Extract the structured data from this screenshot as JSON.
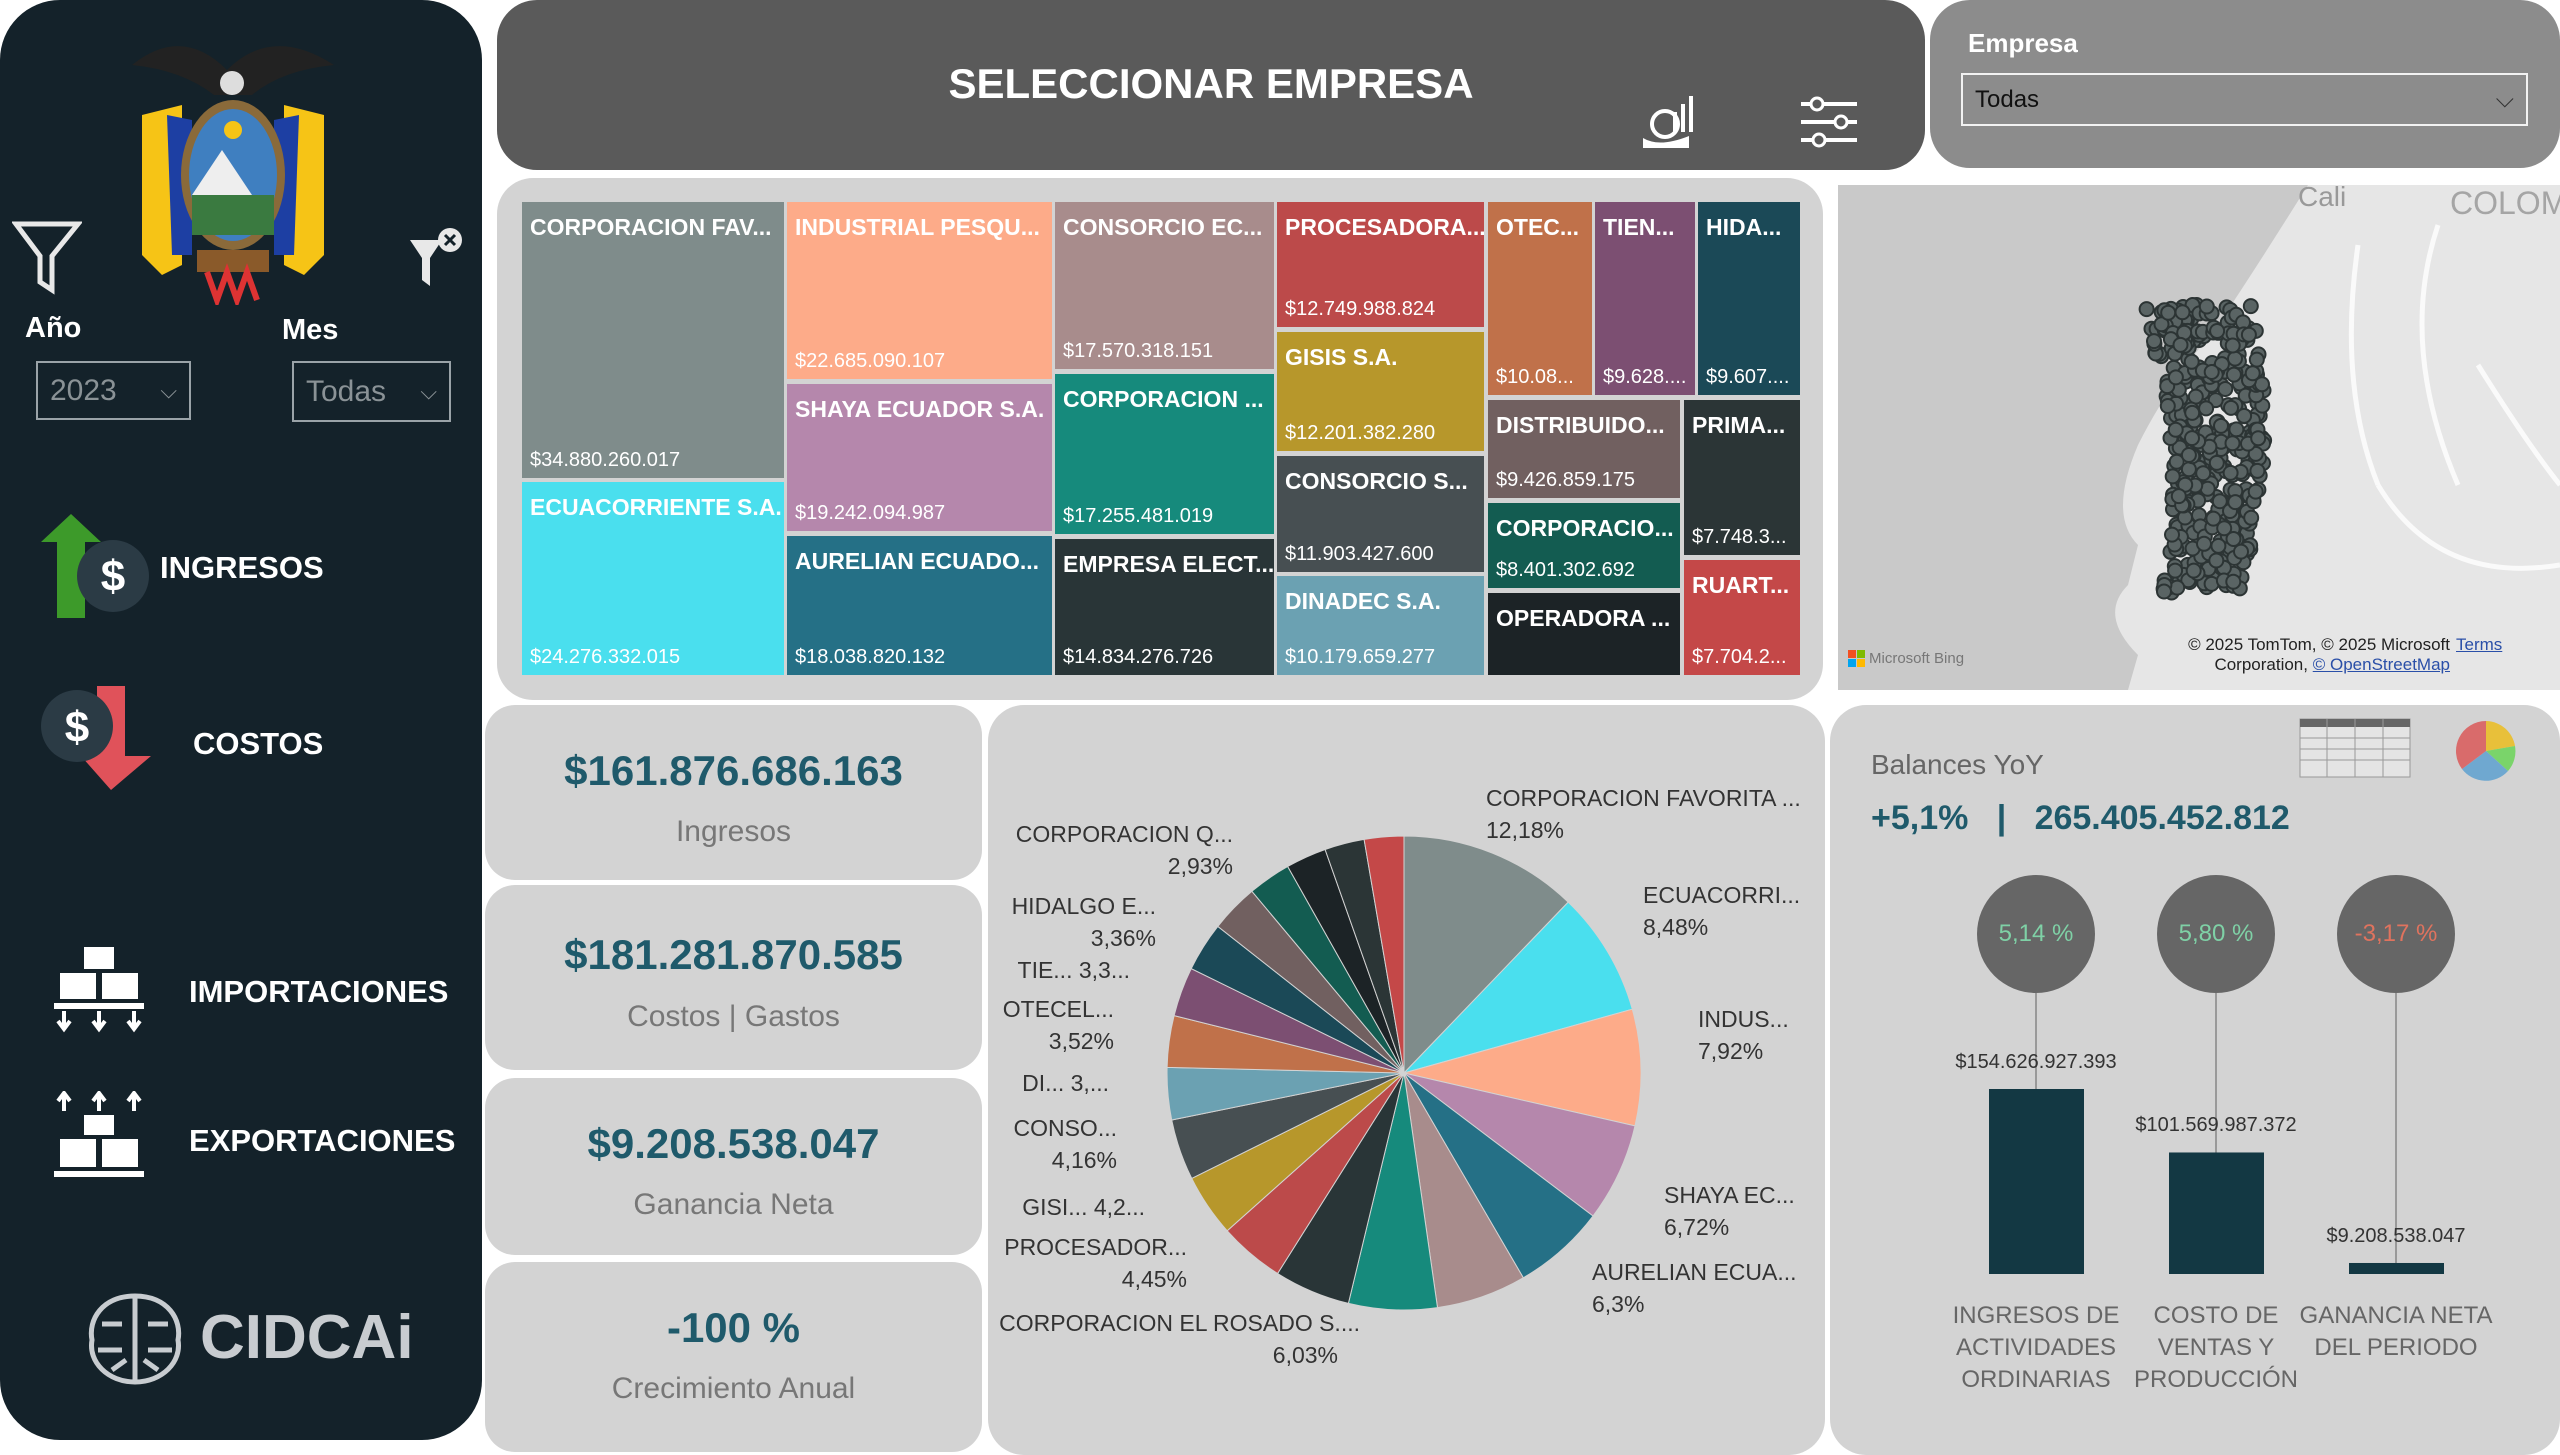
{
  "sidebar": {
    "year_label": "Año",
    "year_value": "2023",
    "month_label": "Mes",
    "month_value": "Todas",
    "nav": [
      {
        "label": "INGRESOS",
        "icon": "income-icon"
      },
      {
        "label": "COSTOS",
        "icon": "costs-icon"
      },
      {
        "label": "IMPORTACIONES",
        "icon": "imports-icon"
      },
      {
        "label": "EXPORTACIONES",
        "icon": "exports-icon"
      }
    ],
    "brand": "CIDCAi"
  },
  "header": {
    "title": "SELECCIONAR EMPRESA"
  },
  "empresa": {
    "label": "Empresa",
    "value": "Todas"
  },
  "treemap": [
    {
      "name": "CORPORACION FAV...",
      "value": "$34.880.260.017",
      "color": "#7f8c8b"
    },
    {
      "name": "ECUACORRIENTE S.A.",
      "value": "$24.276.332.015",
      "color": "#4adfee"
    },
    {
      "name": "INDUSTRIAL PESQU...",
      "value": "$22.685.090.107",
      "color": "#fdab89"
    },
    {
      "name": "SHAYA ECUADOR S.A.",
      "value": "$19.242.094.987",
      "color": "#b587ac"
    },
    {
      "name": "AURELIAN ECUADO...",
      "value": "$18.038.820.132",
      "color": "#257086"
    },
    {
      "name": "CONSORCIO EC...",
      "value": "$17.570.318.151",
      "color": "#a88c8c"
    },
    {
      "name": "CORPORACION ...",
      "value": "$17.255.481.019",
      "color": "#168a7c"
    },
    {
      "name": "EMPRESA ELECT...",
      "value": "$14.834.276.726",
      "color": "#293537"
    },
    {
      "name": "PROCESADORA...",
      "value": "$12.749.988.824",
      "color": "#bc4a4a"
    },
    {
      "name": "GISIS S.A.",
      "value": "$12.201.382.280",
      "color": "#b7972b"
    },
    {
      "name": "CONSORCIO S...",
      "value": "$11.903.427.600",
      "color": "#474f52"
    },
    {
      "name": "DINADEC S.A.",
      "value": "$10.179.659.277",
      "color": "#6ba1b2"
    },
    {
      "name": "OTEC...",
      "value": "$10.08...",
      "color": "#c0714a"
    },
    {
      "name": "TIEN...",
      "value": "$9.628....",
      "color": "#7c4f72"
    },
    {
      "name": "HIDA...",
      "value": "$9.607....",
      "color": "#1b4957"
    },
    {
      "name": "DISTRIBUIDO...",
      "value": "$9.426.859.175",
      "color": "#716060"
    },
    {
      "name": "CORPORACIO...",
      "value": "$8.401.302.692",
      "color": "#135c51"
    },
    {
      "name": "OPERADORA ...",
      "value": "",
      "color": "#1c2326"
    },
    {
      "name": "PRIMA...",
      "value": "$7.748.3...",
      "color": "#2b3536"
    },
    {
      "name": "RUART...",
      "value": "$7.704.2...",
      "color": "#c44848"
    }
  ],
  "map": {
    "labels": [
      "Cali",
      "COLOM"
    ],
    "attribution": "© 2025 TomTom, © 2025 Microsoft",
    "attribution2": "Corporation,",
    "osm": "© OpenStreetMap",
    "terms": "Terms",
    "bing": "Microsoft Bing"
  },
  "kpis": [
    {
      "value": "$161.876.686.163",
      "label": "Ingresos"
    },
    {
      "value": "$181.281.870.585",
      "label": "Costos | Gastos"
    },
    {
      "value": "$9.208.538.047",
      "label": "Ganancia Neta"
    },
    {
      "value": "-100 %",
      "label": "Crecimiento Anual"
    }
  ],
  "chart_data": [
    {
      "type": "pie",
      "slices": [
        {
          "name": "CORPORACION FAVORITA",
          "value": 12.18,
          "color": "#7f8c8b"
        },
        {
          "name": "ECUACORRIENTE",
          "value": 8.48,
          "color": "#4adfee"
        },
        {
          "name": "INDUSTRIAL PESQU",
          "value": 7.92,
          "color": "#fdab89"
        },
        {
          "name": "SHAYA ECUADOR",
          "value": 6.72,
          "color": "#b587ac"
        },
        {
          "name": "AURELIAN ECUADOR",
          "value": 6.3,
          "color": "#257086"
        },
        {
          "name": "CONSORCIO EC",
          "value": 6.13,
          "color": "#a88c8c"
        },
        {
          "name": "CORPORACION EL ROSADO",
          "value": 6.03,
          "color": "#168a7c"
        },
        {
          "name": "EMPRESA ELECT",
          "value": 5.18,
          "color": "#293537"
        },
        {
          "name": "PROCESADORA",
          "value": 4.45,
          "color": "#bc4a4a"
        },
        {
          "name": "GISIS",
          "value": 4.26,
          "color": "#b7972b"
        },
        {
          "name": "CONSORCIO S",
          "value": 4.16,
          "color": "#474f52"
        },
        {
          "name": "DINADEC",
          "value": 3.55,
          "color": "#6ba1b2"
        },
        {
          "name": "OTECEL",
          "value": 3.52,
          "color": "#c0714a"
        },
        {
          "name": "TIENDAS",
          "value": 3.36,
          "color": "#7c4f72"
        },
        {
          "name": "HIDALGO",
          "value": 3.36,
          "color": "#1b4957"
        },
        {
          "name": "DISTRIBUIDORA",
          "value": 3.29,
          "color": "#716060"
        },
        {
          "name": "CORPORACION Q",
          "value": 2.93,
          "color": "#135c51"
        },
        {
          "name": "OPERADORA",
          "value": 2.76,
          "color": "#1c2326"
        },
        {
          "name": "PRIMA",
          "value": 2.71,
          "color": "#2b3536"
        },
        {
          "name": "RUART",
          "value": 2.69,
          "color": "#c44848"
        }
      ],
      "labels": [
        {
          "name": "CORPORACION FAVORITA ...",
          "pct": "12,18%"
        },
        {
          "name": "ECUACORRI...",
          "pct": "8,48%"
        },
        {
          "name": "INDUS...",
          "pct": "7,92%"
        },
        {
          "name": "SHAYA EC...",
          "pct": "6,72%"
        },
        {
          "name": "AURELIAN ECUA...",
          "pct": "6,3%"
        },
        {
          "name": "CORPORACION EL ROSADO S....",
          "pct": "6,03%"
        },
        {
          "name": "PROCESADOR...",
          "pct": "4,45%"
        },
        {
          "name": "GISI... 4,2...",
          "pct": ""
        },
        {
          "name": "CONSO...",
          "pct": "4,16%"
        },
        {
          "name": "DI... 3,...",
          "pct": ""
        },
        {
          "name": "OTECEL...",
          "pct": "3,52%"
        },
        {
          "name": "TIE... 3,3...",
          "pct": ""
        },
        {
          "name": "HIDALGO E...",
          "pct": "3,36%"
        },
        {
          "name": "CORPORACION Q...",
          "pct": "2,93%"
        }
      ]
    },
    {
      "type": "bar",
      "title": "Balances YoY",
      "summary_pct": "+5,1%",
      "summary_sep": "|",
      "summary_total": "265.405.452.812",
      "categories": [
        "INGRESOS DE ACTIVIDADES ORDINARIAS",
        "COSTO DE VENTAS Y PRODUCCIÓN",
        "GANANCIA NETA DEL PERIODO"
      ],
      "values": [
        154626927393,
        101569987372,
        9208538047
      ],
      "value_labels": [
        "$154.626.927.393",
        "$101.569.987.372",
        "$9.208.538.047"
      ],
      "yoy": [
        {
          "text": "5,14 %",
          "color": "#7fd1a6"
        },
        {
          "text": "5,80 %",
          "color": "#7fd1a6"
        },
        {
          "text": "-3,17 %",
          "color": "#e0735e"
        }
      ],
      "bar_color": "#133843"
    }
  ]
}
